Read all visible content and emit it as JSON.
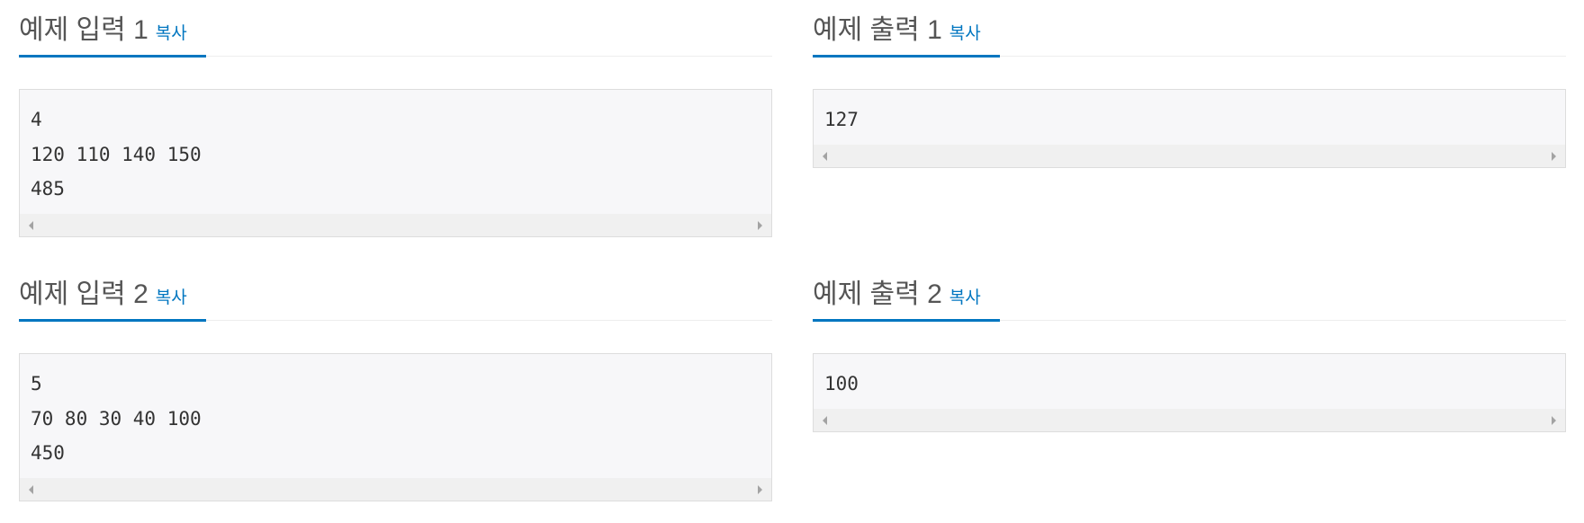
{
  "copy_label": "복사",
  "samples": [
    {
      "title": "예제 입력 1",
      "content": "4\n120 110 140 150\n485"
    },
    {
      "title": "예제 출력 1",
      "content": "127"
    },
    {
      "title": "예제 입력 2",
      "content": "5\n70 80 30 40 100\n450"
    },
    {
      "title": "예제 출력 2",
      "content": "100"
    }
  ],
  "accent": "#0076c0"
}
